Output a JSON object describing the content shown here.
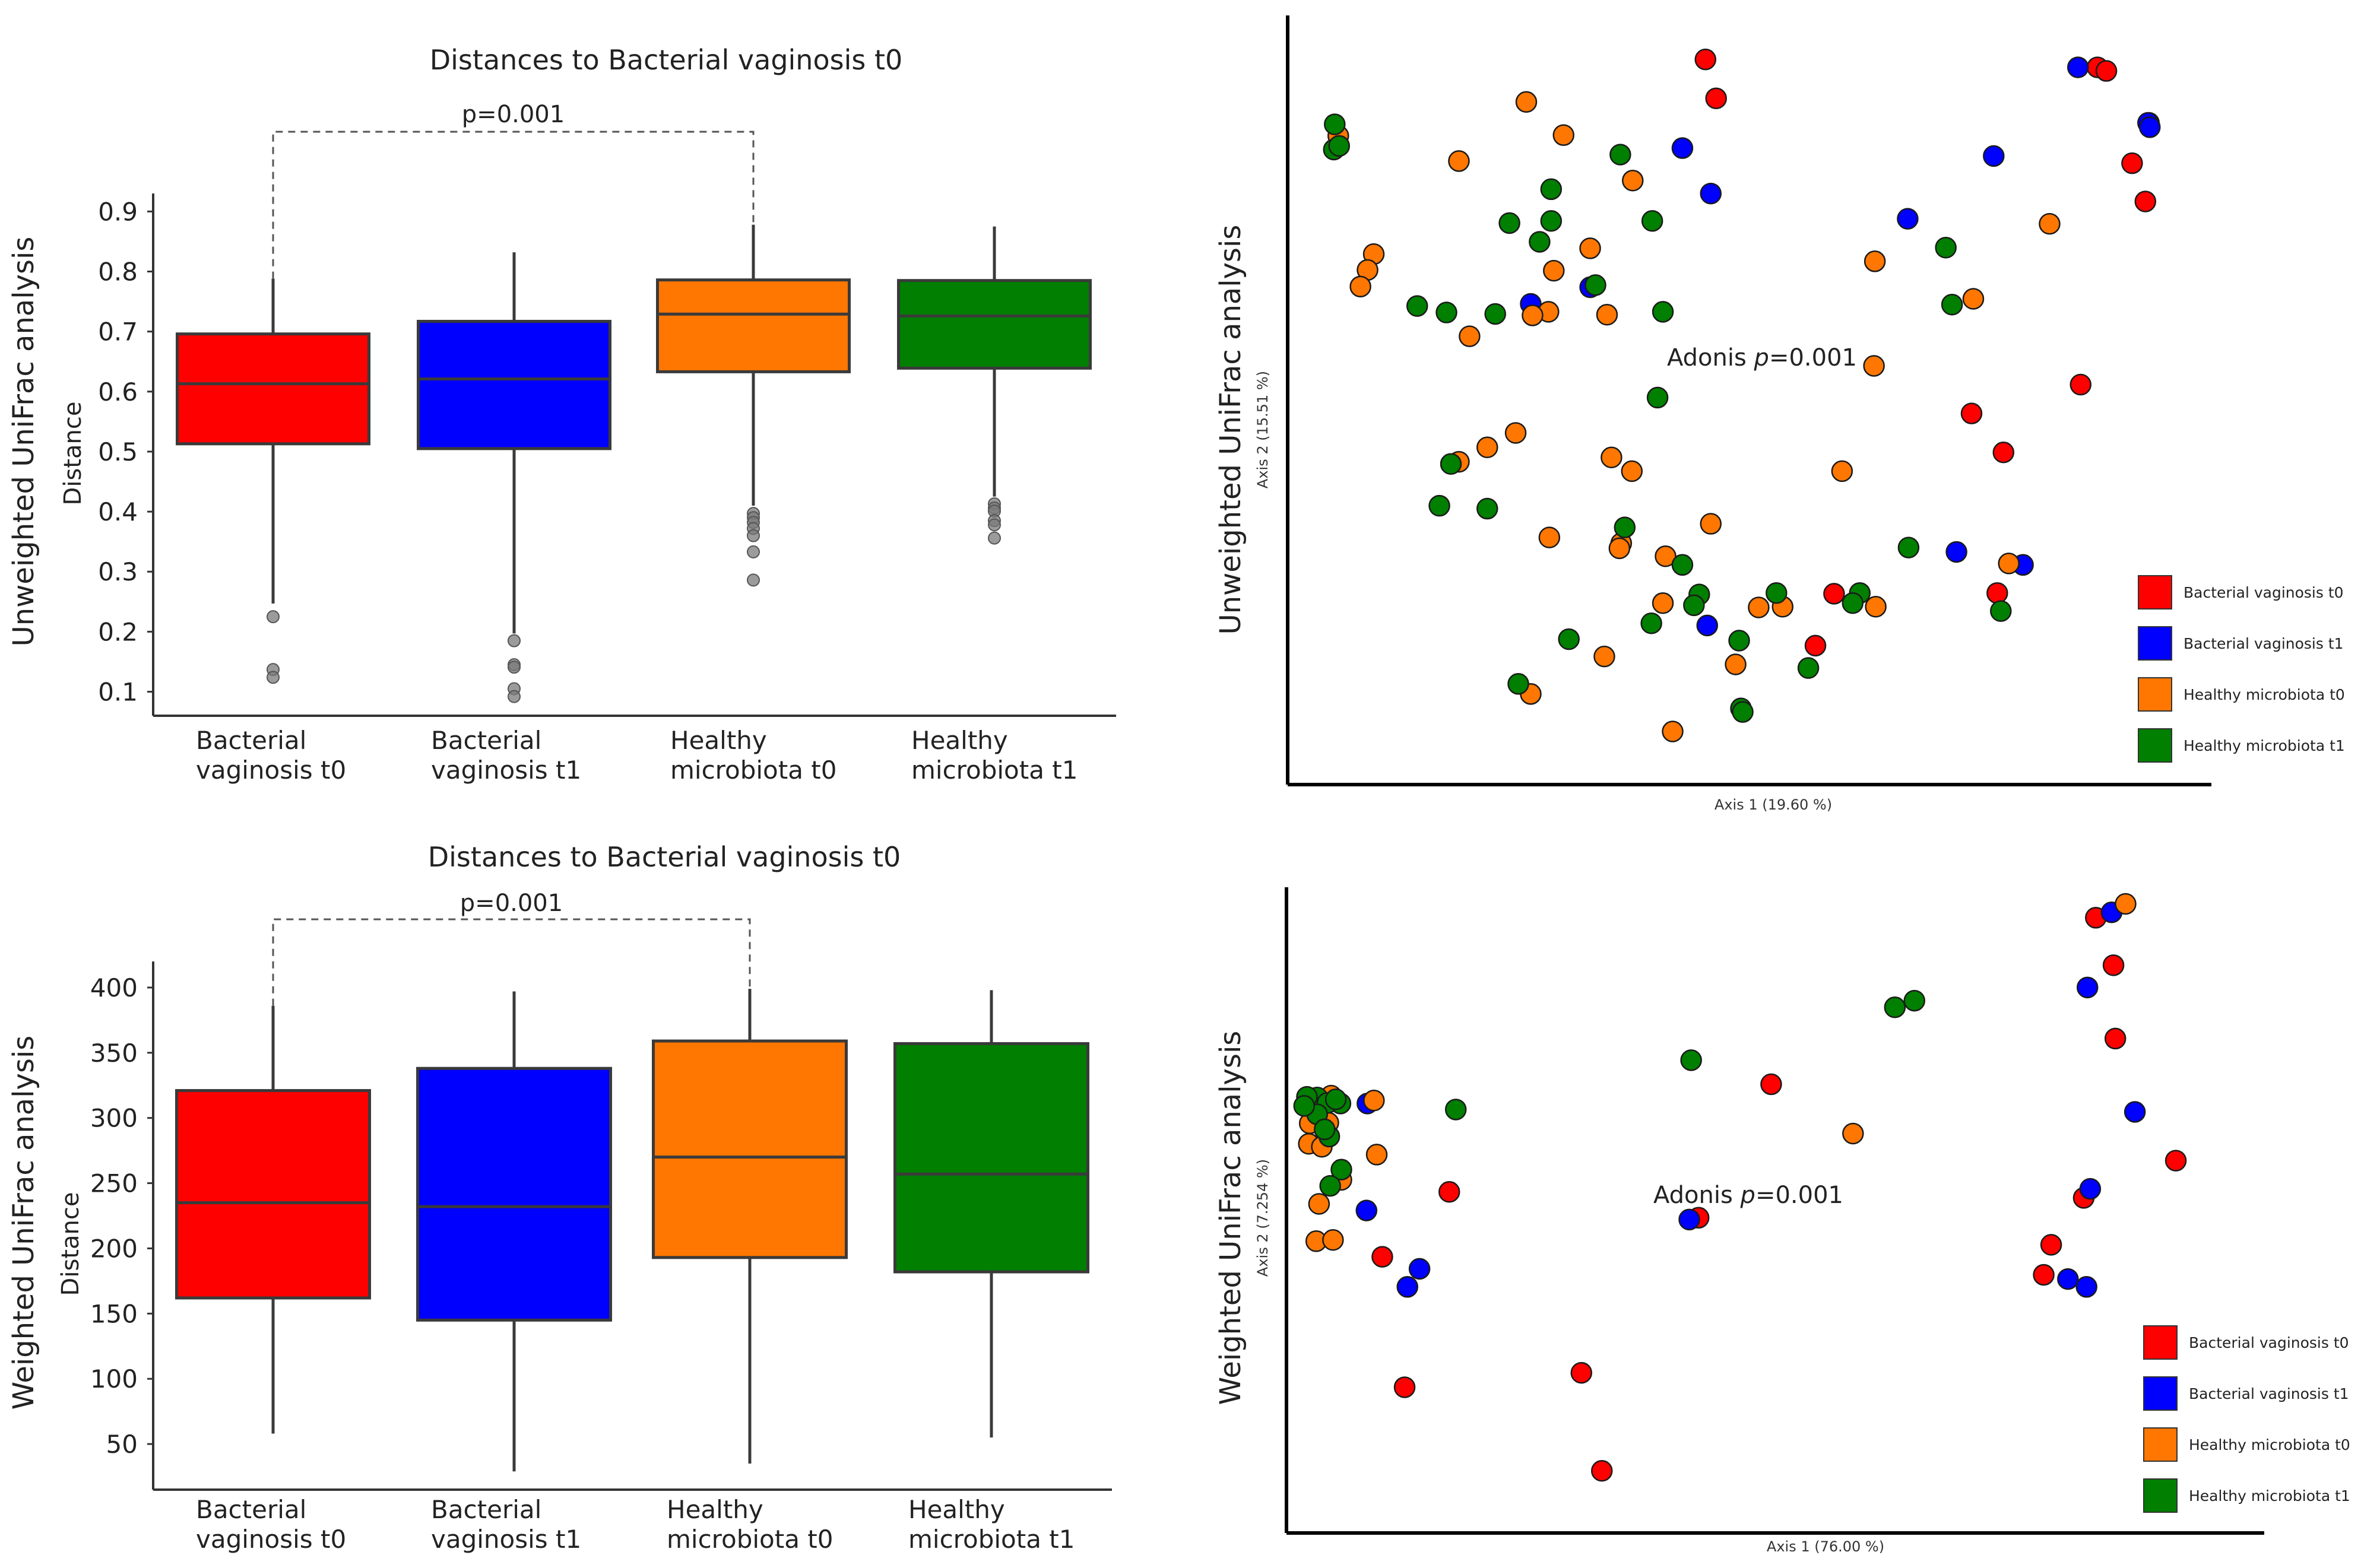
{
  "colors": {
    "bv_t0": "#ff0000",
    "bv_t1": "#0000ff",
    "healthy_t0": "#ff7700",
    "healthy_t1": "#007f00",
    "axis": "#333333",
    "box_stroke": "#3a3a3a"
  },
  "chart_data": [
    {
      "id": "unweighted_box",
      "type": "box",
      "title": "Distances to Bacterial vaginosis t0",
      "ylabel": "Distance",
      "outer_label": "Unweighted UniFrac analysis",
      "ylim": [
        0.06,
        0.93
      ],
      "yticks": [
        "0.1",
        "0.2",
        "0.3",
        "0.4",
        "0.5",
        "0.6",
        "0.7",
        "0.8",
        "0.9"
      ],
      "ytick_values": [
        0.1,
        0.2,
        0.3,
        0.4,
        0.5,
        0.6,
        0.7,
        0.8,
        0.9
      ],
      "categories": [
        [
          "Bacterial",
          "vaginosis t0"
        ],
        [
          "Bacterial",
          "vaginosis t1"
        ],
        [
          "Healthy",
          "microbiota t0"
        ],
        [
          "Healthy",
          "microbiota t1"
        ]
      ],
      "boxes": [
        {
          "group": "bv_t0",
          "whisker_low": 0.247,
          "q1": 0.513,
          "median": 0.613,
          "q3": 0.696,
          "whisker_high": 0.788,
          "outliers": [
            0.225,
            0.137,
            0.124
          ]
        },
        {
          "group": "bv_t1",
          "whisker_low": 0.197,
          "q1": 0.505,
          "median": 0.621,
          "q3": 0.717,
          "whisker_high": 0.832,
          "outliers": [
            0.185,
            0.145,
            0.141,
            0.105,
            0.092
          ]
        },
        {
          "group": "healthy_t0",
          "whisker_low": 0.41,
          "q1": 0.633,
          "median": 0.729,
          "q3": 0.786,
          "whisker_high": 0.878,
          "outliers": [
            0.397,
            0.39,
            0.382,
            0.372,
            0.36,
            0.333,
            0.286
          ]
        },
        {
          "group": "healthy_t1",
          "whisker_low": 0.425,
          "q1": 0.639,
          "median": 0.726,
          "q3": 0.785,
          "whisker_high": 0.875,
          "outliers": [
            0.413,
            0.406,
            0.401,
            0.385,
            0.378,
            0.356
          ]
        }
      ],
      "significance": {
        "label": "p=0.001",
        "from": 0,
        "to": 2
      }
    },
    {
      "id": "weighted_box",
      "type": "box",
      "title": "Distances to Bacterial vaginosis t0",
      "ylabel": "Distance",
      "outer_label": "Weighted UniFrac analysis",
      "ylim": [
        15,
        420
      ],
      "yticks": [
        "50",
        "100",
        "150",
        "200",
        "250",
        "300",
        "350",
        "400"
      ],
      "ytick_values": [
        50,
        100,
        150,
        200,
        250,
        300,
        350,
        400
      ],
      "categories": [
        [
          "Bacterial",
          "vaginosis t0"
        ],
        [
          "Bacterial",
          "vaginosis t1"
        ],
        [
          "Healthy",
          "microbiota t0"
        ],
        [
          "Healthy",
          "microbiota t1"
        ]
      ],
      "boxes": [
        {
          "group": "bv_t0",
          "whisker_low": 58,
          "q1": 162,
          "median": 235,
          "q3": 321,
          "whisker_high": 386
        },
        {
          "group": "bv_t1",
          "whisker_low": 29,
          "q1": 145,
          "median": 232,
          "q3": 338,
          "whisker_high": 397
        },
        {
          "group": "healthy_t0",
          "whisker_low": 35,
          "q1": 193,
          "median": 270,
          "q3": 359,
          "whisker_high": 399
        },
        {
          "group": "healthy_t1",
          "whisker_low": 55,
          "q1": 182,
          "median": 257,
          "q3": 357,
          "whisker_high": 398
        }
      ],
      "significance": {
        "label": "p=0.001",
        "from": 0,
        "to": 2
      }
    },
    {
      "id": "unweighted_pcoa",
      "type": "scatter",
      "ylabel_outer": "Unweighted UniFrac analysis",
      "xlabel": "Axis 1 (19.60 %)",
      "ylabel": "Axis 2 (15.51 %)",
      "annotation": {
        "prefix": "Adonis ",
        "italic": "p",
        "suffix": "=0.001"
      },
      "legend": [
        {
          "group": "bv_t0",
          "label": "Bacterial vaginosis t0"
        },
        {
          "group": "bv_t1",
          "label": "Bacterial vaginosis t1"
        },
        {
          "group": "healthy_t0",
          "label": "Healthy microbiota t0"
        },
        {
          "group": "healthy_t1",
          "label": "Healthy microbiota t1"
        }
      ],
      "xlim": [
        0,
        1
      ],
      "ylim": [
        0,
        1
      ],
      "points": {
        "bv_t0": [
          [
            0.453,
            0.967
          ],
          [
            0.465,
            0.913
          ],
          [
            0.895,
            0.956
          ],
          [
            0.905,
            0.951
          ],
          [
            0.953,
            0.879
          ],
          [
            0.949,
            0.77
          ],
          [
            0.934,
            0.823
          ],
          [
            0.753,
            0.476
          ],
          [
            0.876,
            0.516
          ],
          [
            0.789,
            0.422
          ],
          [
            0.598,
            0.226
          ],
          [
            0.782,
            0.227
          ],
          [
            0.577,
            0.154
          ]
        ],
        "bv_t1": [
          [
            0.427,
            0.844
          ],
          [
            0.459,
            0.781
          ],
          [
            0.873,
            0.956
          ],
          [
            0.952,
            0.879
          ],
          [
            0.954,
            0.873
          ],
          [
            0.778,
            0.833
          ],
          [
            0.681,
            0.746
          ],
          [
            0.256,
            0.628
          ],
          [
            0.323,
            0.651
          ],
          [
            0.736,
            0.284
          ],
          [
            0.811,
            0.266
          ],
          [
            0.455,
            0.182
          ]
        ],
        "healthy_t0": [
          [
            0.251,
            0.908
          ],
          [
            0.293,
            0.862
          ],
          [
            0.175,
            0.826
          ],
          [
            0.039,
            0.861
          ],
          [
            0.079,
            0.697
          ],
          [
            0.072,
            0.675
          ],
          [
            0.064,
            0.652
          ],
          [
            0.371,
            0.799
          ],
          [
            0.187,
            0.583
          ],
          [
            0.276,
            0.617
          ],
          [
            0.323,
            0.705
          ],
          [
            0.282,
            0.674
          ],
          [
            0.342,
            0.613
          ],
          [
            0.258,
            0.612
          ],
          [
            0.644,
            0.687
          ],
          [
            0.755,
            0.635
          ],
          [
            0.841,
            0.739
          ],
          [
            0.643,
            0.542
          ],
          [
            0.239,
            0.449
          ],
          [
            0.207,
            0.429
          ],
          [
            0.175,
            0.409
          ],
          [
            0.347,
            0.415
          ],
          [
            0.37,
            0.396
          ],
          [
            0.607,
            0.396
          ],
          [
            0.459,
            0.323
          ],
          [
            0.277,
            0.304
          ],
          [
            0.358,
            0.296
          ],
          [
            0.356,
            0.289
          ],
          [
            0.408,
            0.278
          ],
          [
            0.795,
            0.268
          ],
          [
            0.405,
            0.213
          ],
          [
            0.513,
            0.207
          ],
          [
            0.339,
            0.139
          ],
          [
            0.487,
            0.128
          ],
          [
            0.645,
            0.208
          ],
          [
            0.256,
            0.087
          ],
          [
            0.416,
            0.035
          ],
          [
            0.54,
            0.208
          ]
        ],
        "healthy_t1": [
          [
            0.035,
            0.877
          ],
          [
            0.034,
            0.842
          ],
          [
            0.04,
            0.847
          ],
          [
            0.357,
            0.835
          ],
          [
            0.279,
            0.787
          ],
          [
            0.393,
            0.743
          ],
          [
            0.279,
            0.743
          ],
          [
            0.232,
            0.74
          ],
          [
            0.266,
            0.714
          ],
          [
            0.329,
            0.654
          ],
          [
            0.128,
            0.625
          ],
          [
            0.161,
            0.616
          ],
          [
            0.216,
            0.614
          ],
          [
            0.405,
            0.617
          ],
          [
            0.724,
            0.706
          ],
          [
            0.731,
            0.627
          ],
          [
            0.399,
            0.498
          ],
          [
            0.166,
            0.406
          ],
          [
            0.153,
            0.348
          ],
          [
            0.207,
            0.344
          ],
          [
            0.362,
            0.318
          ],
          [
            0.427,
            0.266
          ],
          [
            0.446,
            0.225
          ],
          [
            0.44,
            0.21
          ],
          [
            0.392,
            0.185
          ],
          [
            0.491,
            0.161
          ],
          [
            0.533,
            0.227
          ],
          [
            0.627,
            0.227
          ],
          [
            0.619,
            0.213
          ],
          [
            0.682,
            0.29
          ],
          [
            0.786,
            0.202
          ],
          [
            0.299,
            0.163
          ],
          [
            0.569,
            0.123
          ],
          [
            0.242,
            0.101
          ],
          [
            0.493,
            0.067
          ],
          [
            0.495,
            0.062
          ]
        ]
      }
    },
    {
      "id": "weighted_pcoa",
      "type": "scatter",
      "ylabel_outer": "Weighted UniFrac analysis",
      "xlabel": "Axis 1 (76.00 %)",
      "ylabel": "Axis 2 (7.254 %)",
      "annotation": {
        "prefix": "Adonis ",
        "italic": "p",
        "suffix": "=0.001"
      },
      "legend": [
        {
          "group": "bv_t0",
          "label": "Bacterial vaginosis t0"
        },
        {
          "group": "bv_t1",
          "label": "Bacterial vaginosis t1"
        },
        {
          "group": "healthy_t0",
          "label": "Healthy microbiota t0"
        },
        {
          "group": "healthy_t1",
          "label": "Healthy microbiota t1"
        }
      ],
      "xlim": [
        0,
        1
      ],
      "ylim": [
        0,
        1
      ],
      "points": {
        "bv_t0": [
          [
            0.514,
            0.699
          ],
          [
            0.436,
            0.477
          ],
          [
            0.863,
            0.976
          ],
          [
            0.882,
            0.897
          ],
          [
            0.949,
            0.572
          ],
          [
            0.168,
            0.52
          ],
          [
            0.096,
            0.412
          ],
          [
            0.12,
            0.195
          ],
          [
            0.31,
            0.219
          ],
          [
            0.332,
            0.056
          ],
          [
            0.815,
            0.432
          ],
          [
            0.85,
            0.51
          ],
          [
            0.807,
            0.382
          ],
          [
            0.884,
            0.775
          ]
        ],
        "bv_t1": [
          [
            0.88,
            0.985
          ],
          [
            0.854,
            0.86
          ],
          [
            0.905,
            0.653
          ],
          [
            0.857,
            0.525
          ],
          [
            0.833,
            0.375
          ],
          [
            0.079,
            0.489
          ],
          [
            0.08,
            0.667
          ],
          [
            0.136,
            0.392
          ],
          [
            0.123,
            0.362
          ],
          [
            0.853,
            0.362
          ],
          [
            0.426,
            0.474
          ]
        ],
        "healthy_t0": [
          [
            0.895,
            0.999
          ],
          [
            0.602,
            0.617
          ],
          [
            0.09,
            0.582
          ],
          [
            0.052,
            0.54
          ],
          [
            0.087,
            0.672
          ],
          [
            0.018,
            0.665
          ],
          [
            0.029,
            0.662
          ],
          [
            0.034,
            0.625
          ],
          [
            0.017,
            0.6
          ],
          [
            0.021,
            0.641
          ],
          [
            0.031,
            0.595
          ],
          [
            0.018,
            0.634
          ],
          [
            0.038,
            0.635
          ],
          [
            0.028,
            0.5
          ],
          [
            0.025,
            0.438
          ],
          [
            0.043,
            0.44
          ],
          [
            0.041,
            0.68
          ]
        ],
        "healthy_t1": [
          [
            0.668,
            0.838
          ],
          [
            0.647,
            0.827
          ],
          [
            0.428,
            0.739
          ],
          [
            0.175,
            0.657
          ],
          [
            0.051,
            0.667
          ],
          [
            0.026,
            0.677
          ],
          [
            0.037,
            0.668
          ],
          [
            0.015,
            0.678
          ],
          [
            0.026,
            0.649
          ],
          [
            0.039,
            0.612
          ],
          [
            0.012,
            0.663
          ],
          [
            0.034,
            0.624
          ],
          [
            0.052,
            0.557
          ],
          [
            0.04,
            0.53
          ],
          [
            0.046,
            0.674
          ]
        ]
      }
    }
  ]
}
